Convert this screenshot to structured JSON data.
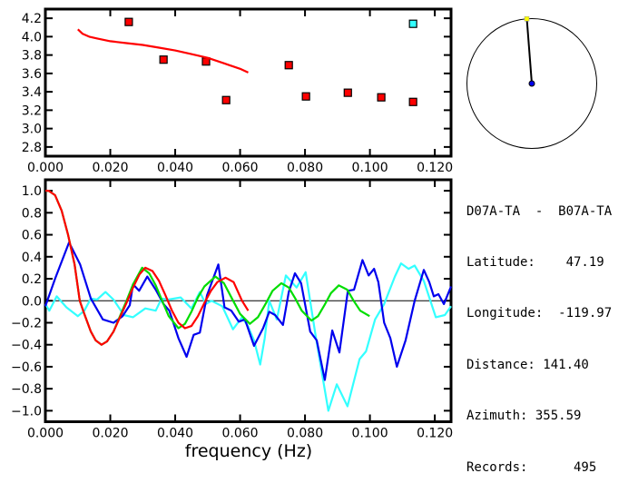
{
  "chart_data": [
    {
      "type": "scatter",
      "xlim": [
        0,
        0.125
      ],
      "ylim": [
        2.7,
        4.3
      ],
      "xticks": [
        "0.000",
        "0.020",
        "0.040",
        "0.060",
        "0.080",
        "0.100",
        "0.120"
      ],
      "yticks": [
        "2.8",
        "3.0",
        "3.2",
        "3.4",
        "3.6",
        "3.8",
        "4.0",
        "4.2"
      ],
      "grid": false,
      "series": [
        {
          "kind": "points",
          "color": "#ff0000",
          "points": [
            [
              0.0257,
              4.16
            ],
            [
              0.0364,
              3.75
            ],
            [
              0.0495,
              3.73
            ],
            [
              0.0557,
              3.31
            ],
            [
              0.075,
              3.69
            ],
            [
              0.0803,
              3.35
            ],
            [
              0.0932,
              3.39
            ],
            [
              0.1035,
              3.34
            ],
            [
              0.1133,
              3.29
            ]
          ]
        },
        {
          "kind": "points",
          "color": "#33ffff",
          "points": [
            [
              0.1133,
              4.14
            ]
          ]
        },
        {
          "kind": "line",
          "color": "#ff0000",
          "points": [
            [
              0.01,
              4.08
            ],
            [
              0.0115,
              4.03
            ],
            [
              0.0135,
              4.0
            ],
            [
              0.016,
              3.98
            ],
            [
              0.02,
              3.95
            ],
            [
              0.025,
              3.93
            ],
            [
              0.03,
              3.91
            ],
            [
              0.035,
              3.88
            ],
            [
              0.04,
              3.85
            ],
            [
              0.045,
              3.81
            ],
            [
              0.05,
              3.77
            ],
            [
              0.055,
              3.71
            ],
            [
              0.06,
              3.65
            ],
            [
              0.0625,
              3.61
            ]
          ]
        }
      ]
    },
    {
      "type": "line",
      "xlim": [
        0,
        0.125
      ],
      "ylim": [
        -1.1,
        1.1
      ],
      "xlabel": "frequency (Hz)",
      "xticks": [
        "0.000",
        "0.020",
        "0.040",
        "0.060",
        "0.080",
        "0.100",
        "0.120"
      ],
      "yticks": [
        "-1.0",
        "-0.8",
        "-0.6",
        "-0.4",
        "-0.2",
        "0.0",
        "0.2",
        "0.4",
        "0.6",
        "0.8",
        "1.0"
      ],
      "grid": false,
      "zero_line": true,
      "series": [
        {
          "color": "#33ffff",
          "points": [
            [
              0,
              -0.03
            ],
            [
              0.0012,
              -0.09
            ],
            [
              0.0035,
              0.04
            ],
            [
              0.0065,
              -0.06
            ],
            [
              0.01,
              -0.14
            ],
            [
              0.012,
              -0.09
            ],
            [
              0.014,
              0.02
            ],
            [
              0.0159,
              0.01
            ],
            [
              0.0185,
              0.08
            ],
            [
              0.021,
              0.01
            ],
            [
              0.0242,
              -0.13
            ],
            [
              0.027,
              -0.15
            ],
            [
              0.0308,
              -0.07
            ],
            [
              0.034,
              -0.09
            ],
            [
              0.0358,
              0.02
            ],
            [
              0.0378,
              0.01
            ],
            [
              0.0417,
              0.03
            ],
            [
              0.045,
              -0.07
            ],
            [
              0.0476,
              0.08
            ],
            [
              0.0494,
              -0.03
            ],
            [
              0.0512,
              0.0
            ],
            [
              0.0545,
              -0.05
            ],
            [
              0.0578,
              -0.26
            ],
            [
              0.0606,
              -0.15
            ],
            [
              0.0624,
              -0.23
            ],
            [
              0.0643,
              -0.36
            ],
            [
              0.0662,
              -0.58
            ],
            [
              0.0676,
              -0.34
            ],
            [
              0.069,
              0.0
            ],
            [
              0.0713,
              -0.17
            ],
            [
              0.0741,
              0.23
            ],
            [
              0.0774,
              0.12
            ],
            [
              0.0802,
              0.26
            ],
            [
              0.0834,
              -0.34
            ],
            [
              0.0872,
              -1.0
            ],
            [
              0.0898,
              -0.76
            ],
            [
              0.0931,
              -0.96
            ],
            [
              0.0968,
              -0.53
            ],
            [
              0.0988,
              -0.46
            ],
            [
              0.1016,
              -0.17
            ],
            [
              0.1044,
              -0.03
            ],
            [
              0.1077,
              0.22
            ],
            [
              0.1096,
              0.34
            ],
            [
              0.1119,
              0.29
            ],
            [
              0.1138,
              0.32
            ],
            [
              0.1166,
              0.18
            ],
            [
              0.1203,
              -0.15
            ],
            [
              0.1231,
              -0.13
            ],
            [
              0.125,
              -0.05
            ]
          ]
        },
        {
          "color": "#0000ee",
          "points": [
            [
              0,
              -0.05
            ],
            [
              0.003,
              0.2
            ],
            [
              0.0073,
              0.53
            ],
            [
              0.0107,
              0.33
            ],
            [
              0.014,
              0.02
            ],
            [
              0.0177,
              -0.17
            ],
            [
              0.021,
              -0.2
            ],
            [
              0.0238,
              -0.14
            ],
            [
              0.026,
              -0.04
            ],
            [
              0.027,
              0.15
            ],
            [
              0.0289,
              0.09
            ],
            [
              0.0314,
              0.22
            ],
            [
              0.034,
              0.1
            ],
            [
              0.0364,
              -0.03
            ],
            [
              0.0382,
              -0.09
            ],
            [
              0.041,
              -0.34
            ],
            [
              0.0435,
              -0.51
            ],
            [
              0.0457,
              -0.31
            ],
            [
              0.0476,
              -0.29
            ],
            [
              0.0498,
              0.05
            ],
            [
              0.0533,
              0.33
            ],
            [
              0.0552,
              -0.06
            ],
            [
              0.0573,
              -0.09
            ],
            [
              0.0596,
              -0.19
            ],
            [
              0.0615,
              -0.17
            ],
            [
              0.0643,
              -0.41
            ],
            [
              0.0671,
              -0.25
            ],
            [
              0.069,
              -0.1
            ],
            [
              0.0708,
              -0.13
            ],
            [
              0.0732,
              -0.22
            ],
            [
              0.075,
              0.08
            ],
            [
              0.0769,
              0.25
            ],
            [
              0.0788,
              0.16
            ],
            [
              0.0816,
              -0.28
            ],
            [
              0.0836,
              -0.36
            ],
            [
              0.0861,
              -0.72
            ],
            [
              0.0884,
              -0.27
            ],
            [
              0.0906,
              -0.47
            ],
            [
              0.0932,
              0.09
            ],
            [
              0.0951,
              0.1
            ],
            [
              0.0977,
              0.37
            ],
            [
              0.0996,
              0.23
            ],
            [
              0.1013,
              0.29
            ],
            [
              0.1026,
              0.17
            ],
            [
              0.1044,
              -0.2
            ],
            [
              0.1063,
              -0.34
            ],
            [
              0.1083,
              -0.6
            ],
            [
              0.111,
              -0.36
            ],
            [
              0.1138,
              0.0
            ],
            [
              0.1166,
              0.28
            ],
            [
              0.1183,
              0.17
            ],
            [
              0.1197,
              0.04
            ],
            [
              0.1211,
              0.06
            ],
            [
              0.1228,
              -0.03
            ],
            [
              0.125,
              0.13
            ]
          ]
        },
        {
          "color": "#00dd00",
          "points": [
            [
              0,
              1.0
            ],
            [
              0.001,
              1.0
            ],
            [
              0.003,
              0.96
            ],
            [
              0.005,
              0.82
            ],
            [
              0.007,
              0.6
            ],
            [
              0.009,
              0.33
            ],
            [
              0.0106,
              0.0
            ],
            [
              0.012,
              -0.12
            ],
            [
              0.014,
              -0.28
            ],
            [
              0.0155,
              -0.36
            ],
            [
              0.0173,
              -0.4
            ],
            [
              0.019,
              -0.37
            ],
            [
              0.021,
              -0.28
            ],
            [
              0.023,
              -0.14
            ],
            [
              0.025,
              0.0
            ],
            [
              0.027,
              0.15
            ],
            [
              0.0298,
              0.3
            ],
            [
              0.032,
              0.25
            ],
            [
              0.034,
              0.14
            ],
            [
              0.036,
              0.0
            ],
            [
              0.038,
              -0.14
            ],
            [
              0.041,
              -0.25
            ],
            [
              0.043,
              -0.21
            ],
            [
              0.045,
              -0.1
            ],
            [
              0.047,
              0.03
            ],
            [
              0.049,
              0.13
            ],
            [
              0.0524,
              0.22
            ],
            [
              0.055,
              0.16
            ],
            [
              0.0575,
              0.02
            ],
            [
              0.06,
              -0.12
            ],
            [
              0.063,
              -0.21
            ],
            [
              0.0655,
              -0.15
            ],
            [
              0.068,
              -0.02
            ],
            [
              0.07,
              0.09
            ],
            [
              0.0727,
              0.16
            ],
            [
              0.075,
              0.12
            ],
            [
              0.077,
              0.02
            ],
            [
              0.079,
              -0.09
            ],
            [
              0.082,
              -0.18
            ],
            [
              0.084,
              -0.14
            ],
            [
              0.086,
              -0.04
            ],
            [
              0.088,
              0.07
            ],
            [
              0.0904,
              0.14
            ],
            [
              0.093,
              0.1
            ],
            [
              0.095,
              0.0
            ],
            [
              0.097,
              -0.09
            ],
            [
              0.0999,
              -0.14
            ]
          ]
        },
        {
          "color": "#ff0000",
          "points": [
            [
              0,
              1.0
            ],
            [
              0.001,
              1.0
            ],
            [
              0.003,
              0.96
            ],
            [
              0.005,
              0.82
            ],
            [
              0.007,
              0.6
            ],
            [
              0.009,
              0.33
            ],
            [
              0.0106,
              0.0
            ],
            [
              0.012,
              -0.12
            ],
            [
              0.014,
              -0.28
            ],
            [
              0.0155,
              -0.36
            ],
            [
              0.0173,
              -0.4
            ],
            [
              0.019,
              -0.37
            ],
            [
              0.021,
              -0.28
            ],
            [
              0.023,
              -0.15
            ],
            [
              0.025,
              -0.02
            ],
            [
              0.027,
              0.12
            ],
            [
              0.029,
              0.24
            ],
            [
              0.0308,
              0.3
            ],
            [
              0.033,
              0.27
            ],
            [
              0.035,
              0.18
            ],
            [
              0.037,
              0.05
            ],
            [
              0.039,
              -0.09
            ],
            [
              0.041,
              -0.2
            ],
            [
              0.043,
              -0.25
            ],
            [
              0.045,
              -0.23
            ],
            [
              0.047,
              -0.14
            ],
            [
              0.049,
              -0.02
            ],
            [
              0.051,
              0.09
            ],
            [
              0.053,
              0.17
            ],
            [
              0.0555,
              0.21
            ],
            [
              0.058,
              0.17
            ],
            [
              0.0606,
              0.0
            ],
            [
              0.0625,
              -0.09
            ]
          ]
        }
      ]
    }
  ],
  "azimuth_dial": {
    "azimuth_deg": 355.59,
    "station_color": "#ffff00",
    "center_color": "#0000ee"
  },
  "info": {
    "pair": "D07A-TA  -  B07A-TA",
    "latitude": "Latitude:    47.19",
    "longitude": "Longitude:  -119.97",
    "distance": "Distance: 141.40",
    "azimuth": "Azimuth: 355.59",
    "records": "Records:      495"
  }
}
